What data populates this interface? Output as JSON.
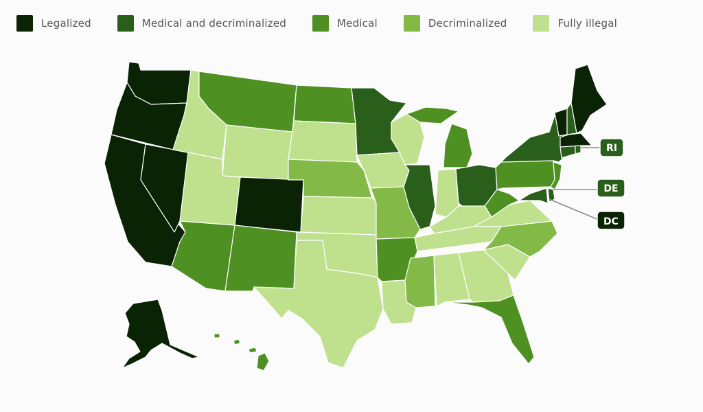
{
  "colors": {
    "legalized": "#0a2305",
    "medical_decriminalized": "#2a5e1b",
    "medical": "#4e9021",
    "decriminalized": "#82b947",
    "fully_illegal": "#bfe08d"
  },
  "legend": {
    "items": [
      {
        "key": "legalized",
        "label": "Legalized"
      },
      {
        "key": "medical_decriminalized",
        "label": "Medical and decriminalized"
      },
      {
        "key": "medical",
        "label": "Medical"
      },
      {
        "key": "decriminalized",
        "label": "Decriminalized"
      },
      {
        "key": "fully_illegal",
        "label": "Fully illegal"
      }
    ]
  },
  "callouts": [
    {
      "label": "RI",
      "status": "medical_decriminalized"
    },
    {
      "label": "DE",
      "status": "medical_decriminalized"
    },
    {
      "label": "DC",
      "status": "legalized"
    }
  ]
}
